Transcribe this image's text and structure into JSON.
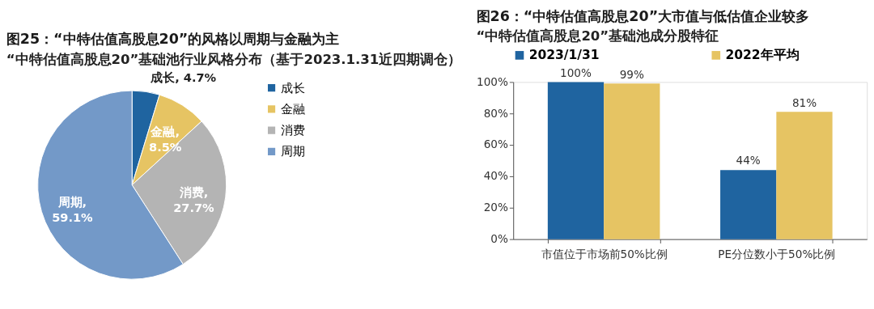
{
  "chart_data": [
    {
      "type": "pie",
      "title": "图25：“中特估值高股息20”的风格以周期与金融为主",
      "subtitle": "“中特估值高股息20”基础池行业风格分布（基于2023.1.31近四期调仓）",
      "categories": [
        "成长",
        "金融",
        "消费",
        "周期"
      ],
      "values": [
        4.7,
        8.5,
        27.7,
        59.1
      ],
      "colors": [
        "#1f64a0",
        "#e6c463",
        "#b4b4b4",
        "#7399c8"
      ],
      "value_labels": [
        "成长, 4.7%",
        "金融,\n8.5%",
        "消费,\n27.7%",
        "周期,\n59.1%"
      ],
      "legend": "right"
    },
    {
      "type": "bar",
      "title": "图26：“中特估值高股息20”大市值与低估值企业较多",
      "subtitle": "“中特估值高股息20”基础池成分股特征",
      "categories": [
        "市值位于市场前50%比例",
        "PE分位数小于50%比例"
      ],
      "series": [
        {
          "name": "2023/1/31",
          "color": "#1f64a0",
          "values": [
            100,
            44
          ],
          "value_labels": [
            "100%",
            "44%"
          ]
        },
        {
          "name": "2022年平均",
          "color": "#e6c463",
          "values": [
            99,
            81
          ],
          "value_labels": [
            "99%",
            "81%"
          ]
        }
      ],
      "ylim": [
        0,
        100
      ],
      "yticks": [
        {
          "value": 0,
          "label": "0%"
        },
        {
          "value": 20,
          "label": "20%"
        },
        {
          "value": 40,
          "label": "40%"
        },
        {
          "value": 60,
          "label": "60%"
        },
        {
          "value": 80,
          "label": "80%"
        },
        {
          "value": 100,
          "label": "100%"
        }
      ],
      "legend": "top",
      "grid": false
    }
  ]
}
